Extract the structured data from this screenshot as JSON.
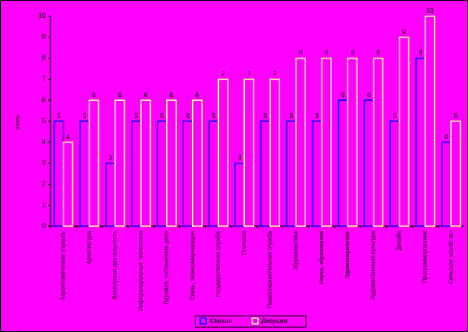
{
  "chart_data": {
    "type": "bar",
    "y_label": "баллы",
    "categories": [
      "Аэрокосмическая отрасль",
      "Архитектура",
      "Банковская деятельность",
      "Информационные технологии",
      "Торговля, гостиничное дело",
      "Связь, телекоммуникации",
      "Государственная служба",
      "Геология",
      "Правоохранительная служба",
      "Журналистика",
      "Наука, образование",
      "Здравоохранение",
      "Художественная культура",
      "Дизайн",
      "Программирование",
      "Сельское хозяйство"
    ],
    "series": [
      {
        "name": "Юноши",
        "color": "#0000ff",
        "values": [
          5,
          5,
          3,
          5,
          5,
          5,
          5,
          3,
          5,
          5,
          5,
          6,
          6,
          5,
          8,
          4
        ]
      },
      {
        "name": "Девушки",
        "color": "#ffff99",
        "values": [
          4,
          6,
          6,
          6,
          6,
          6,
          7,
          7,
          7,
          8,
          8,
          8,
          8,
          9,
          10,
          5
        ]
      }
    ],
    "ylim": [
      0,
      10
    ],
    "yticks": [
      0,
      1,
      2,
      3,
      4,
      5,
      6,
      7,
      8,
      9,
      10
    ],
    "grid": false,
    "legend": "bottom"
  }
}
